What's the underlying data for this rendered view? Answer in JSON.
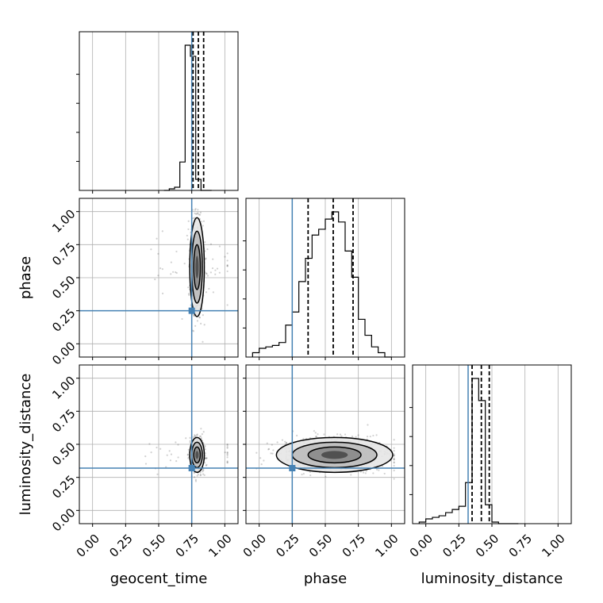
{
  "chart_data": {
    "type": "corner",
    "parameters": [
      "geocent_time",
      "phase",
      "luminosity_distance"
    ],
    "xlabels": [
      "geocent_time",
      "phase",
      "luminosity_distance"
    ],
    "ylabels": [
      "",
      "phase",
      "luminosity_distance"
    ],
    "tick_values": [
      0.0,
      0.25,
      0.5,
      0.75,
      1.0
    ],
    "tick_labels": [
      "0.00",
      "0.25",
      "0.50",
      "0.75",
      "1.00"
    ],
    "xlim": [
      -0.1,
      1.1
    ],
    "ylim": [
      -0.1,
      1.1
    ],
    "grid": true,
    "truth_color": "#4682b4",
    "truths": {
      "geocent_time": 0.75,
      "phase": 0.25,
      "luminosity_distance": 0.32
    },
    "histograms": {
      "geocent_time": {
        "bin_edges": [
          0.54,
          0.58,
          0.62,
          0.66,
          0.7,
          0.74,
          0.78,
          0.82,
          0.86,
          0.9
        ],
        "counts": [
          0,
          0.01,
          0.02,
          0.18,
          0.92,
          0.85,
          0.07,
          0,
          0
        ],
        "quantiles": [
          0.76,
          0.8,
          0.84
        ]
      },
      "phase": {
        "bin_edges": [
          -0.05,
          0.0,
          0.05,
          0.1,
          0.15,
          0.2,
          0.25,
          0.3,
          0.35,
          0.4,
          0.45,
          0.5,
          0.55,
          0.6,
          0.65,
          0.7,
          0.75,
          0.8,
          0.85,
          0.9,
          0.95,
          1.0
        ],
        "counts": [
          0.03,
          0.06,
          0.07,
          0.08,
          0.1,
          0.22,
          0.31,
          0.52,
          0.68,
          0.84,
          0.88,
          0.95,
          1.0,
          0.93,
          0.73,
          0.55,
          0.26,
          0.15,
          0.07,
          0.03,
          0.0
        ],
        "quantiles": [
          0.37,
          0.56,
          0.71
        ]
      },
      "luminosity_distance": {
        "bin_edges": [
          -0.05,
          0.0,
          0.05,
          0.1,
          0.15,
          0.2,
          0.25,
          0.3,
          0.35,
          0.4,
          0.45,
          0.5,
          0.55,
          0.6,
          0.65,
          0.7
        ],
        "counts": [
          0.01,
          0.03,
          0.04,
          0.05,
          0.07,
          0.09,
          0.11,
          0.26,
          0.92,
          0.78,
          0.12,
          0.01,
          0,
          0,
          0
        ],
        "quantiles": [
          0.35,
          0.42,
          0.48
        ]
      }
    },
    "scatter_pairs": [
      {
        "x_param": "geocent_time",
        "y_param": "phase",
        "x_center": 0.79,
        "y_center": 0.58,
        "x_spread": 0.025,
        "y_spread": 0.17
      },
      {
        "x_param": "geocent_time",
        "y_param": "luminosity_distance",
        "x_center": 0.79,
        "y_center": 0.42,
        "x_spread": 0.025,
        "y_spread": 0.06
      },
      {
        "x_param": "phase",
        "y_param": "luminosity_distance",
        "x_center": 0.57,
        "y_center": 0.42,
        "x_spread": 0.2,
        "y_spread": 0.06
      }
    ]
  }
}
